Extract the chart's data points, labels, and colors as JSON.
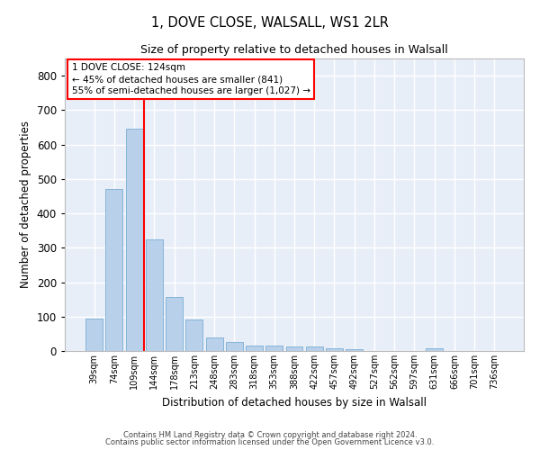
{
  "title1": "1, DOVE CLOSE, WALSALL, WS1 2LR",
  "title2": "Size of property relative to detached houses in Walsall",
  "xlabel": "Distribution of detached houses by size in Walsall",
  "ylabel": "Number of detached properties",
  "bar_color": "#b8d0ea",
  "bar_edge_color": "#7aadd4",
  "background_color": "#e8eef8",
  "grid_color": "#ffffff",
  "categories": [
    "39sqm",
    "74sqm",
    "109sqm",
    "144sqm",
    "178sqm",
    "213sqm",
    "248sqm",
    "283sqm",
    "318sqm",
    "353sqm",
    "388sqm",
    "422sqm",
    "457sqm",
    "492sqm",
    "527sqm",
    "562sqm",
    "597sqm",
    "631sqm",
    "666sqm",
    "701sqm",
    "736sqm"
  ],
  "values": [
    95,
    470,
    645,
    325,
    157,
    92,
    40,
    25,
    17,
    16,
    14,
    14,
    9,
    6,
    0,
    0,
    0,
    8,
    0,
    0,
    0
  ],
  "ylim": [
    0,
    850
  ],
  "yticks": [
    0,
    100,
    200,
    300,
    400,
    500,
    600,
    700,
    800
  ],
  "annotation_text_line1": "1 DOVE CLOSE: 124sqm",
  "annotation_text_line2": "← 45% of detached houses are smaller (841)",
  "annotation_text_line3": "55% of semi-detached houses are larger (1,027) →",
  "vline_x_index": 2.5,
  "footer1": "Contains HM Land Registry data © Crown copyright and database right 2024.",
  "footer2": "Contains public sector information licensed under the Open Government Licence v3.0."
}
